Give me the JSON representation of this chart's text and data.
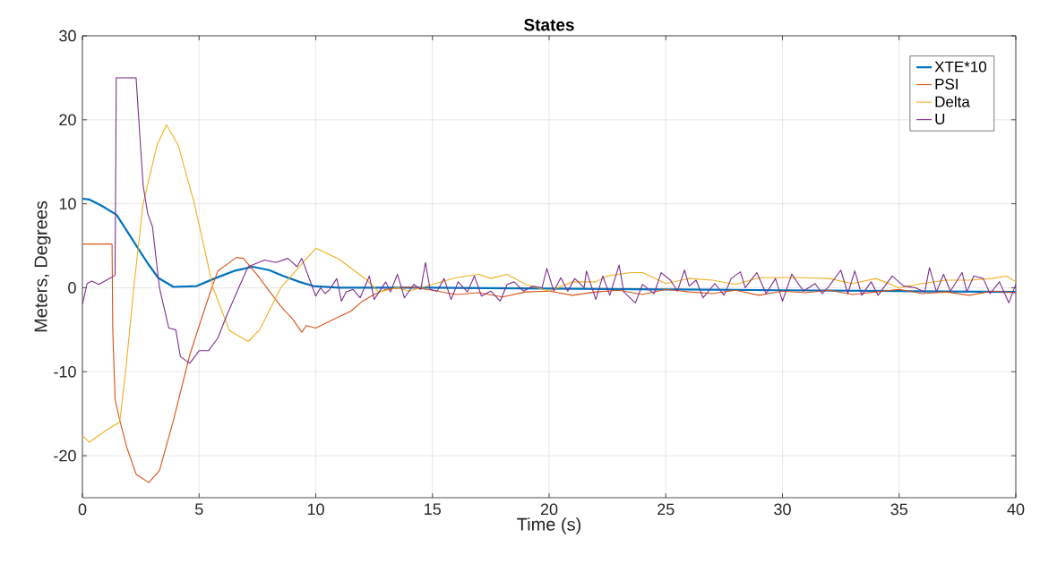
{
  "chart_data": {
    "type": "line",
    "title": "States",
    "xlabel": "Time (s)",
    "ylabel": "Meters, Degrees",
    "xlim": [
      0,
      40
    ],
    "ylim": [
      -25,
      30
    ],
    "xticks": [
      0,
      5,
      10,
      15,
      20,
      25,
      30,
      35,
      40
    ],
    "yticks": [
      -20,
      -10,
      0,
      10,
      20,
      30
    ],
    "grid": true,
    "legend": "top right",
    "series": [
      {
        "name": "XTE*10",
        "color": "#0072bd",
        "x": [
          0,
          0.3,
          0.8,
          1.46,
          2.29,
          2.8,
          3.24,
          3.9,
          4.9,
          5.66,
          6.5,
          7.3,
          8.0,
          8.6,
          9.3,
          9.9,
          11,
          12,
          15,
          20,
          25,
          30,
          35,
          40
        ],
        "values": [
          10.6,
          10.5,
          9.8,
          8.7,
          5.1,
          2.9,
          1.2,
          0.1,
          0.2,
          1.1,
          2.0,
          2.5,
          2.1,
          1.4,
          0.7,
          0.2,
          0,
          0,
          0,
          -0.1,
          -0.2,
          -0.3,
          -0.4,
          -0.5
        ]
      },
      {
        "name": "PSI",
        "color": "#d95319",
        "x": [
          0,
          1.27,
          1.3,
          1.4,
          1.6,
          1.9,
          2.3,
          2.84,
          3.3,
          3.9,
          4.6,
          5.3,
          5.8,
          6.6,
          6.9,
          7.5,
          7.9,
          8.5,
          9.0,
          9.4,
          9.6,
          10.0,
          10.8,
          11.5,
          12,
          12.5,
          13,
          14,
          15,
          16,
          17,
          18,
          19,
          20,
          21,
          22,
          23,
          24,
          25,
          26,
          27,
          28,
          29,
          30,
          31,
          32,
          33,
          34,
          35,
          36,
          37,
          38,
          39,
          40
        ],
        "values": [
          5.2,
          5.2,
          -5,
          -13.3,
          -15.8,
          -19,
          -22.2,
          -23.2,
          -21.8,
          -15.8,
          -8,
          -2,
          2,
          3.6,
          3.5,
          1.5,
          0,
          -2.2,
          -3.7,
          -5.3,
          -4.5,
          -4.8,
          -3.7,
          -2.8,
          -1.6,
          -0.8,
          -0.2,
          0.1,
          -0.3,
          -0.8,
          -0.6,
          -1.1,
          -0.5,
          -0.4,
          -0.9,
          -0.5,
          -0.3,
          -0.8,
          -0.2,
          -0.5,
          -0.7,
          -0.3,
          -0.9,
          -0.4,
          -0.6,
          -0.3,
          -0.8,
          -0.5,
          -0.2,
          -0.7,
          -0.5,
          -0.9,
          -0.4,
          -0.6
        ]
      },
      {
        "name": "Delta",
        "color": "#edb120",
        "x": [
          0,
          0.3,
          1.0,
          1.6,
          1.85,
          2.2,
          2.6,
          3.2,
          3.6,
          4.1,
          4.8,
          5.6,
          6.3,
          7.1,
          7.6,
          8.5,
          10.0,
          11,
          12.2,
          12.7,
          13.5,
          14,
          15,
          16,
          17,
          17.5,
          18.2,
          19,
          20,
          21,
          22,
          22.5,
          23.5,
          24,
          25,
          26,
          27,
          28,
          29,
          30,
          31,
          32,
          33,
          34,
          35,
          36,
          37,
          38,
          39,
          39.6,
          40
        ],
        "values": [
          -17.6,
          -18.4,
          -17,
          -16,
          -10,
          0,
          10,
          17,
          19.4,
          17,
          10,
          0,
          -5.1,
          -6.4,
          -5,
          0,
          4.7,
          3.4,
          0.9,
          -0.5,
          0,
          -0.4,
          0.4,
          1.2,
          1.6,
          1.1,
          1.6,
          0.4,
          -0.4,
          0.7,
          0.7,
          1.4,
          1.8,
          1.8,
          0.5,
          1.1,
          0.9,
          0.4,
          1.2,
          1.2,
          1.2,
          1.1,
          0.5,
          1.1,
          0,
          0.5,
          0.9,
          0.9,
          1.1,
          1.4,
          0.7
        ]
      },
      {
        "name": "U",
        "color": "#7e2f8e",
        "x": [
          0,
          0.2,
          0.4,
          0.7,
          1.1,
          1.4,
          1.45,
          2.3,
          2.6,
          2.8,
          3.0,
          3.3,
          3.7,
          4.0,
          4.2,
          4.6,
          5.0,
          5.4,
          5.8,
          6.2,
          6.7,
          7.1,
          7.8,
          8.3,
          8.8,
          9.2,
          9.4,
          9.8,
          10.0,
          10.2,
          10.4,
          10.6,
          10.9,
          11.1,
          11.3,
          11.6,
          11.9,
          12.3,
          12.5,
          13.0,
          13.2,
          13.5,
          13.8,
          14.2,
          14.5,
          14.7,
          14.9,
          15.2,
          15.5,
          15.8,
          16.1,
          16.5,
          16.8,
          17.1,
          17.5,
          17.9,
          18.2,
          18.5,
          18.9,
          19.3,
          19.7,
          19.9,
          20.2,
          20.5,
          20.8,
          21.1,
          21.5,
          21.6,
          22.0,
          22.3,
          22.6,
          23.0,
          23.2,
          23.7,
          24.0,
          24.5,
          24.8,
          25.2,
          25.5,
          25.8,
          26.0,
          26.3,
          26.6,
          27.1,
          27.5,
          27.8,
          28.2,
          28.4,
          28.9,
          29.3,
          29.7,
          30.0,
          30.4,
          30.9,
          31.4,
          31.7,
          32.0,
          32.5,
          32.8,
          33.1,
          33.4,
          33.8,
          34.1,
          34.7,
          35.2,
          35.7,
          36.1,
          36.3,
          36.6,
          36.9,
          37.2,
          37.7,
          37.9,
          38.2,
          38.6,
          38.9,
          39.3,
          39.7,
          40.0
        ],
        "values": [
          -2,
          0.5,
          0.8,
          0.4,
          1,
          1.5,
          25,
          25,
          12.2,
          8.8,
          7.3,
          0,
          -4.8,
          -5,
          -8.2,
          -9,
          -7.5,
          -7.5,
          -6,
          -3.2,
          0,
          2.5,
          3.3,
          3,
          3.5,
          2.5,
          3.5,
          0.5,
          -1,
          0,
          -0.7,
          -0.2,
          1.1,
          -1.6,
          -0.5,
          -0.2,
          -1.2,
          1.4,
          -1.4,
          0.7,
          -0.5,
          1.6,
          -1.2,
          0.4,
          -0.2,
          3,
          -0.2,
          -0.4,
          1.1,
          -1.4,
          0.7,
          -0.5,
          1.4,
          -1,
          -0.4,
          -1.6,
          0.4,
          0.7,
          -0.4,
          0.2,
          0,
          2.3,
          -0.4,
          1.2,
          -0.4,
          1.1,
          0,
          2,
          -1.4,
          1.4,
          -0.9,
          2.7,
          -0.5,
          -1.8,
          0.4,
          -0.7,
          1.8,
          0.9,
          -0.4,
          2.1,
          0.2,
          0.9,
          -1.2,
          0.5,
          -0.9,
          1.1,
          1.9,
          0,
          1.8,
          -0.7,
          1.1,
          -1.6,
          1.6,
          -0.4,
          0.5,
          -0.7,
          0.2,
          2.1,
          -0.7,
          2,
          -0.9,
          0.7,
          -0.9,
          1.4,
          0.2,
          0,
          -0.5,
          2.4,
          -0.5,
          1.6,
          -0.4,
          1.8,
          -0.5,
          1.4,
          1.1,
          -0.7,
          0.7,
          -1.8,
          0.4
        ]
      }
    ]
  }
}
